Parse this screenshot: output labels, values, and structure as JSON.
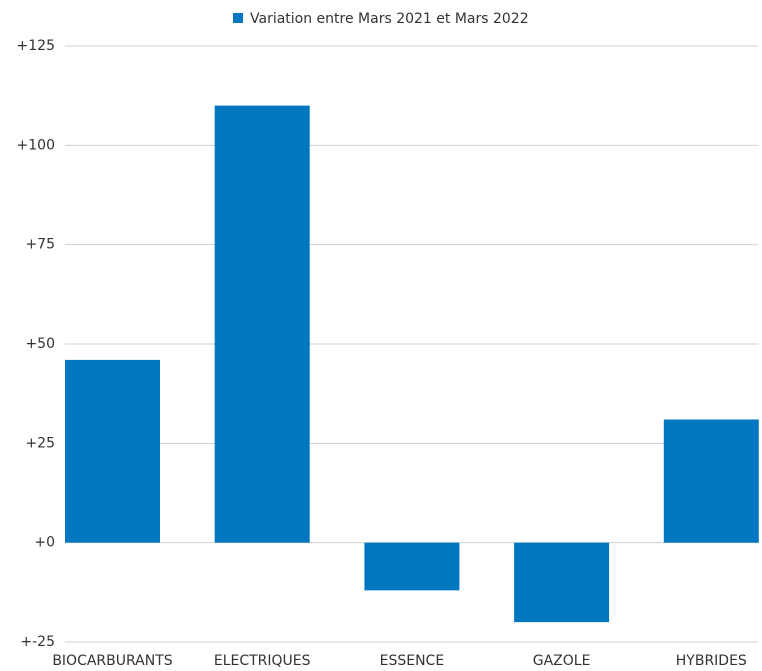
{
  "chart_data": {
    "type": "bar",
    "categories": [
      "BIOCARBURANTS",
      "ELECTRIQUES",
      "ESSENCE",
      "GAZOLE",
      "HYBRIDES"
    ],
    "series": [
      {
        "name": "Variation entre Mars 2021 et Mars 2022",
        "color": "#0077c0",
        "values": [
          46,
          110,
          -12,
          -20,
          31
        ]
      }
    ],
    "ylim": [
      -25,
      125
    ],
    "yticks": [
      {
        "value": -25,
        "label": "+-25"
      },
      {
        "value": 0,
        "label": "+0"
      },
      {
        "value": 25,
        "label": "+25"
      },
      {
        "value": 50,
        "label": "+50"
      },
      {
        "value": 75,
        "label": "+75"
      },
      {
        "value": 100,
        "label": "+100"
      },
      {
        "value": 125,
        "label": "+125"
      }
    ],
    "grid": true,
    "legend": "top"
  }
}
